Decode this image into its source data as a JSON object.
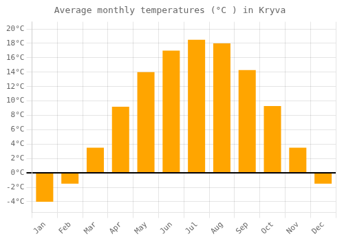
{
  "chart_data": {
    "type": "bar",
    "title": "Average monthly temperatures (°C ) in Kryva",
    "categories": [
      "Jan",
      "Feb",
      "Mar",
      "Apr",
      "May",
      "Jun",
      "Jul",
      "Aug",
      "Sep",
      "Oct",
      "Nov",
      "Dec"
    ],
    "values": [
      -4.0,
      -1.5,
      3.5,
      9.2,
      14.0,
      17.0,
      18.5,
      18.0,
      14.3,
      9.3,
      3.5,
      -1.5
    ],
    "color": "#FFA500",
    "ylim": [
      -5.5,
      21
    ],
    "yticks": [
      {
        "value": -4,
        "label": "-4°C"
      },
      {
        "value": -2,
        "label": "-2°C"
      },
      {
        "value": 0,
        "label": "0°C"
      },
      {
        "value": 2,
        "label": "2°C"
      },
      {
        "value": 4,
        "label": "4°C"
      },
      {
        "value": 6,
        "label": "6°C"
      },
      {
        "value": 8,
        "label": "8°C"
      },
      {
        "value": 10,
        "label": "10°C"
      },
      {
        "value": 12,
        "label": "12°C"
      },
      {
        "value": 14,
        "label": "14°C"
      },
      {
        "value": 16,
        "label": "16°C"
      },
      {
        "value": 18,
        "label": "18°C"
      },
      {
        "value": 20,
        "label": "20°C"
      }
    ],
    "grid": true
  }
}
